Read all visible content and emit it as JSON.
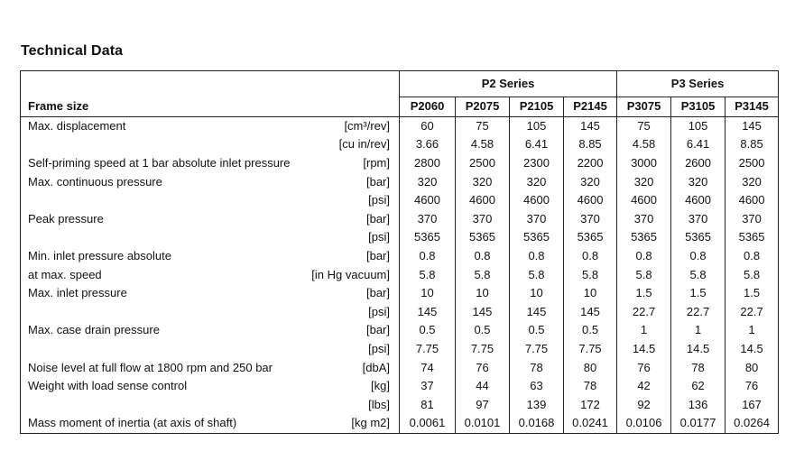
{
  "title": "Technical Data",
  "series": [
    {
      "label": "P2 Series"
    },
    {
      "label": "P3 Series"
    }
  ],
  "header": {
    "label": "Frame size",
    "models": [
      "P2060",
      "P2075",
      "P2105",
      "P2145",
      "P3075",
      "P3105",
      "P3145"
    ]
  },
  "rows": [
    {
      "label": "Max. displacement",
      "unit": "[cm³/rev]",
      "values": [
        "60",
        "75",
        "105",
        "145",
        "75",
        "105",
        "145"
      ]
    },
    {
      "label": "",
      "unit": "[cu in/rev]",
      "values": [
        "3.66",
        "4.58",
        "6.41",
        "8.85",
        "4.58",
        "6.41",
        "8.85"
      ]
    },
    {
      "label": "Self-priming speed at 1 bar absolute inlet pressure",
      "unit": "[rpm]",
      "values": [
        "2800",
        "2500",
        "2300",
        "2200",
        "3000",
        "2600",
        "2500"
      ]
    },
    {
      "label": "Max. continuous pressure",
      "unit": "[bar]",
      "values": [
        "320",
        "320",
        "320",
        "320",
        "320",
        "320",
        "320"
      ]
    },
    {
      "label": "",
      "unit": "[psi]",
      "values": [
        "4600",
        "4600",
        "4600",
        "4600",
        "4600",
        "4600",
        "4600"
      ]
    },
    {
      "label": "Peak pressure",
      "unit": "[bar]",
      "values": [
        "370",
        "370",
        "370",
        "370",
        "370",
        "370",
        "370"
      ]
    },
    {
      "label": "",
      "unit": "[psi]",
      "values": [
        "5365",
        "5365",
        "5365",
        "5365",
        "5365",
        "5365",
        "5365"
      ]
    },
    {
      "label": "Min. inlet pressure absolute",
      "unit": "[bar]",
      "values": [
        "0.8",
        "0.8",
        "0.8",
        "0.8",
        "0.8",
        "0.8",
        "0.8"
      ]
    },
    {
      "label": "at max. speed",
      "unit": "[in Hg vacuum]",
      "values": [
        "5.8",
        "5.8",
        "5.8",
        "5.8",
        "5.8",
        "5.8",
        "5.8"
      ]
    },
    {
      "label": "Max. inlet pressure",
      "unit": "[bar]",
      "values": [
        "10",
        "10",
        "10",
        "10",
        "1.5",
        "1.5",
        "1.5"
      ]
    },
    {
      "label": "",
      "unit": "[psi]",
      "values": [
        "145",
        "145",
        "145",
        "145",
        "22.7",
        "22.7",
        "22.7"
      ]
    },
    {
      "label": "Max. case drain pressure",
      "unit": "[bar]",
      "values": [
        "0.5",
        "0.5",
        "0.5",
        "0.5",
        "1",
        "1",
        "1"
      ]
    },
    {
      "label": "",
      "unit": "[psi]",
      "values": [
        "7.75",
        "7.75",
        "7.75",
        "7.75",
        "14.5",
        "14.5",
        "14.5"
      ]
    },
    {
      "label": "Noise level at full flow at 1800 rpm and 250 bar",
      "unit": "[dbA]",
      "values": [
        "74",
        "76",
        "78",
        "80",
        "76",
        "78",
        "80"
      ]
    },
    {
      "label": "Weight with load sense control",
      "unit": "[kg]",
      "values": [
        "37",
        "44",
        "63",
        "78",
        "42",
        "62",
        "76"
      ]
    },
    {
      "label": "",
      "unit": "[lbs]",
      "values": [
        "81",
        "97",
        "139",
        "172",
        "92",
        "136",
        "167"
      ]
    },
    {
      "label": "Mass moment of inertia (at axis of shaft)",
      "unit": "[kg m2]",
      "values": [
        "0.0061",
        "0.0101",
        "0.0168",
        "0.0241",
        "0.0106",
        "0.0177",
        "0.0264"
      ]
    }
  ]
}
